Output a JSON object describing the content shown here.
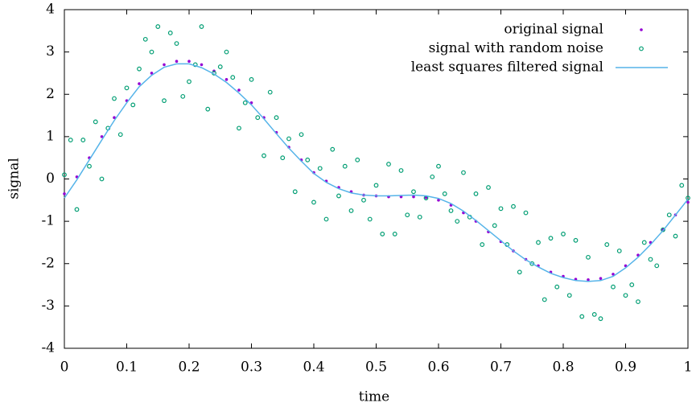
{
  "chart_data": {
    "type": "scatter",
    "xlabel": "time",
    "ylabel": "signal",
    "xlim": [
      0,
      1
    ],
    "ylim": [
      -4,
      4
    ],
    "xticks": [
      0,
      0.1,
      0.2,
      0.3,
      0.4,
      0.5,
      0.6,
      0.7,
      0.8,
      0.9,
      1
    ],
    "yticks": [
      -4,
      -3,
      -2,
      -1,
      0,
      1,
      2,
      3,
      4
    ],
    "legend": "top-right",
    "series": [
      {
        "name": "original signal",
        "color": "#9400d3",
        "style": "dots",
        "x": [
          0,
          0.02,
          0.04,
          0.06,
          0.08,
          0.1,
          0.12,
          0.14,
          0.16,
          0.18,
          0.2,
          0.22,
          0.24,
          0.26,
          0.28,
          0.3,
          0.32,
          0.34,
          0.36,
          0.38,
          0.4,
          0.42,
          0.44,
          0.46,
          0.48,
          0.5,
          0.52,
          0.54,
          0.56,
          0.58,
          0.6,
          0.62,
          0.64,
          0.66,
          0.68,
          0.7,
          0.72,
          0.74,
          0.76,
          0.78,
          0.8,
          0.82,
          0.84,
          0.86,
          0.88,
          0.9,
          0.92,
          0.94,
          0.96,
          0.98,
          1
        ],
        "values": [
          -0.35,
          0.05,
          0.5,
          1.0,
          1.45,
          1.85,
          2.25,
          2.5,
          2.7,
          2.78,
          2.78,
          2.7,
          2.55,
          2.35,
          2.1,
          1.8,
          1.45,
          1.1,
          0.75,
          0.45,
          0.15,
          -0.05,
          -0.2,
          -0.3,
          -0.38,
          -0.4,
          -0.42,
          -0.42,
          -0.42,
          -0.44,
          -0.5,
          -0.62,
          -0.8,
          -1.0,
          -1.25,
          -1.48,
          -1.7,
          -1.9,
          -2.05,
          -2.2,
          -2.3,
          -2.37,
          -2.38,
          -2.35,
          -2.25,
          -2.05,
          -1.8,
          -1.5,
          -1.2,
          -0.85,
          -0.55
        ]
      },
      {
        "name": "signal with random noise",
        "color": "#009e73",
        "style": "circles",
        "x": [
          0,
          0.01,
          0.02,
          0.03,
          0.04,
          0.05,
          0.06,
          0.07,
          0.08,
          0.09,
          0.1,
          0.11,
          0.12,
          0.13,
          0.14,
          0.15,
          0.16,
          0.17,
          0.18,
          0.19,
          0.2,
          0.21,
          0.22,
          0.23,
          0.24,
          0.25,
          0.26,
          0.27,
          0.28,
          0.29,
          0.3,
          0.31,
          0.32,
          0.33,
          0.34,
          0.35,
          0.36,
          0.37,
          0.38,
          0.39,
          0.4,
          0.41,
          0.42,
          0.43,
          0.44,
          0.45,
          0.46,
          0.47,
          0.48,
          0.49,
          0.5,
          0.51,
          0.52,
          0.53,
          0.54,
          0.55,
          0.56,
          0.57,
          0.58,
          0.59,
          0.6,
          0.61,
          0.62,
          0.63,
          0.64,
          0.65,
          0.66,
          0.67,
          0.68,
          0.69,
          0.7,
          0.71,
          0.72,
          0.73,
          0.74,
          0.75,
          0.76,
          0.77,
          0.78,
          0.79,
          0.8,
          0.81,
          0.82,
          0.83,
          0.84,
          0.85,
          0.86,
          0.87,
          0.88,
          0.89,
          0.9,
          0.91,
          0.92,
          0.93,
          0.94,
          0.95,
          0.96,
          0.97,
          0.98,
          0.99,
          1
        ],
        "values": [
          0.1,
          0.92,
          -0.72,
          0.92,
          0.3,
          1.35,
          0.0,
          1.2,
          1.9,
          1.05,
          2.15,
          1.75,
          2.6,
          3.3,
          3.0,
          3.6,
          1.85,
          3.45,
          3.2,
          1.95,
          2.3,
          2.7,
          3.6,
          1.65,
          2.5,
          2.65,
          3.0,
          2.4,
          1.2,
          1.8,
          2.35,
          1.45,
          0.55,
          2.05,
          1.45,
          0.5,
          0.95,
          -0.3,
          1.05,
          0.45,
          -0.55,
          0.25,
          -0.95,
          0.7,
          -0.4,
          0.3,
          -0.75,
          0.45,
          -0.5,
          -0.95,
          -0.15,
          -1.3,
          0.35,
          -1.3,
          0.2,
          -0.85,
          -0.3,
          -0.9,
          -0.45,
          0.05,
          0.3,
          -0.35,
          -0.75,
          -1.0,
          0.15,
          -0.9,
          -0.35,
          -1.55,
          -0.2,
          -1.1,
          -0.7,
          -1.55,
          -0.65,
          -2.2,
          -0.8,
          -2.0,
          -1.5,
          -2.85,
          -1.4,
          -2.55,
          -1.3,
          -2.75,
          -1.45,
          -3.25,
          -1.85,
          -3.2,
          -3.3,
          -1.55,
          -2.55,
          -1.7,
          -2.75,
          -2.5,
          -2.9,
          -1.5,
          -1.9,
          -2.05,
          -1.2,
          -0.85,
          -1.35,
          -0.15,
          -0.45
        ]
      },
      {
        "name": "least squares filtered signal",
        "color": "#56b4e9",
        "style": "line",
        "x": [
          0,
          0.02,
          0.04,
          0.06,
          0.08,
          0.1,
          0.12,
          0.14,
          0.16,
          0.18,
          0.2,
          0.22,
          0.24,
          0.26,
          0.28,
          0.3,
          0.32,
          0.34,
          0.36,
          0.38,
          0.4,
          0.42,
          0.44,
          0.46,
          0.48,
          0.5,
          0.52,
          0.54,
          0.56,
          0.58,
          0.6,
          0.62,
          0.64,
          0.66,
          0.68,
          0.7,
          0.72,
          0.74,
          0.76,
          0.78,
          0.8,
          0.82,
          0.84,
          0.86,
          0.88,
          0.9,
          0.92,
          0.94,
          0.96,
          0.98,
          1
        ],
        "values": [
          -0.45,
          -0.02,
          0.45,
          0.92,
          1.38,
          1.8,
          2.18,
          2.45,
          2.64,
          2.72,
          2.72,
          2.63,
          2.48,
          2.28,
          2.03,
          1.75,
          1.42,
          1.07,
          0.73,
          0.42,
          0.13,
          -0.08,
          -0.23,
          -0.33,
          -0.38,
          -0.4,
          -0.4,
          -0.39,
          -0.38,
          -0.4,
          -0.46,
          -0.58,
          -0.76,
          -0.98,
          -1.22,
          -1.46,
          -1.7,
          -1.91,
          -2.08,
          -2.23,
          -2.33,
          -2.4,
          -2.42,
          -2.4,
          -2.3,
          -2.1,
          -1.85,
          -1.55,
          -1.22,
          -0.85,
          -0.48
        ]
      }
    ]
  }
}
